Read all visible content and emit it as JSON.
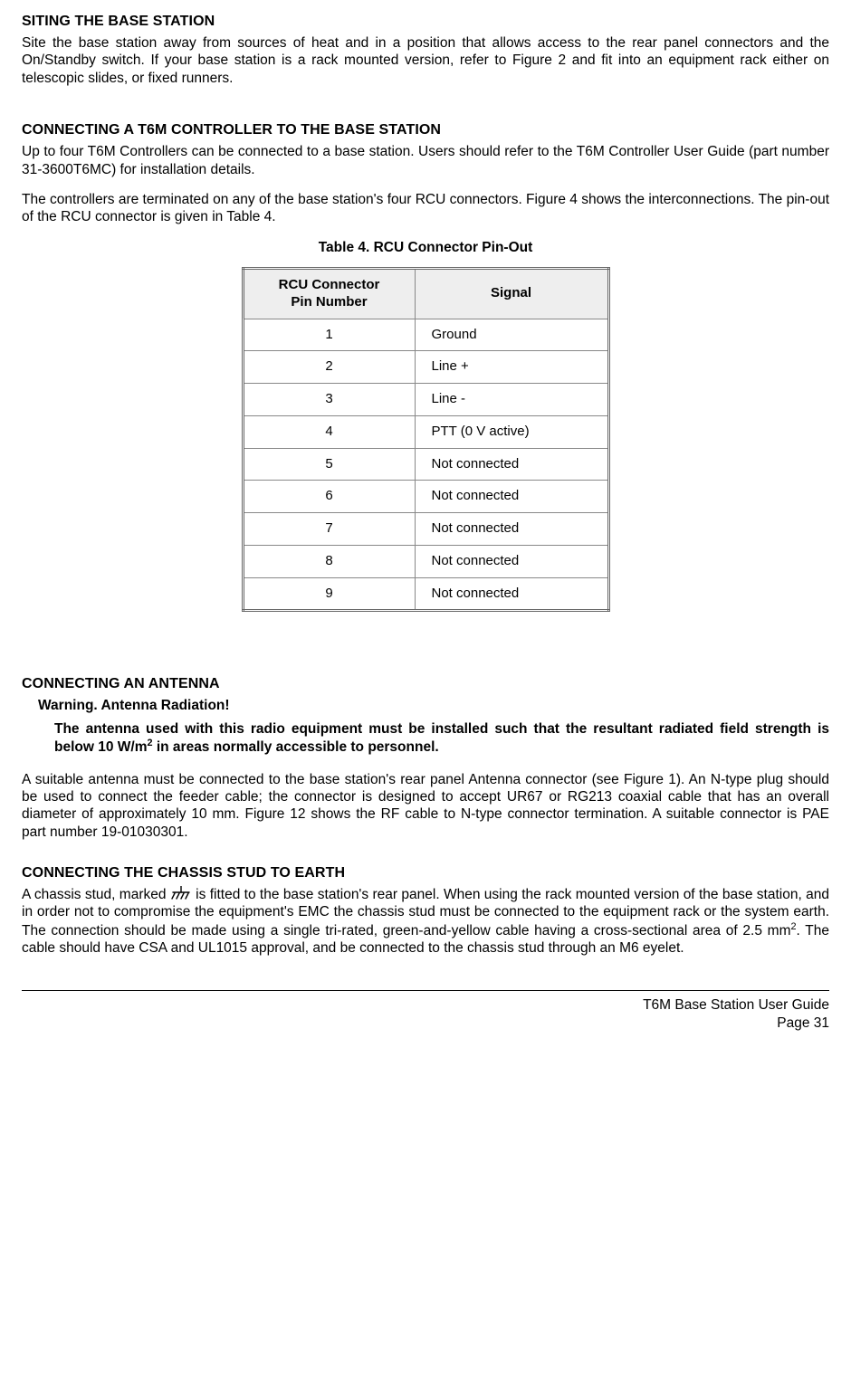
{
  "section1": {
    "heading": "SITING THE BASE STATION",
    "para": "Site the base station away from sources of heat and in a position that allows access to the rear panel connectors and the On/Standby switch. If your base station is a rack mounted version, refer to Figure 2 and fit into an equipment rack either on telescopic slides, or fixed runners."
  },
  "section2": {
    "heading": "CONNECTING A T6M CONTROLLER TO THE BASE STATION",
    "para1": "Up to four T6M Controllers can be connected to a base station. Users should refer to the T6M Controller User Guide (part number 31-3600T6MC) for installation details.",
    "para2": "The controllers are terminated on any of the base station's four RCU connectors. Figure 4 shows the interconnections. The pin-out of the RCU connector is given in Table 4.",
    "table_caption": "Table 4.  RCU Connector Pin-Out",
    "table": {
      "col1_header_line1": "RCU Connector",
      "col1_header_line2": "Pin Number",
      "col2_header": "Signal",
      "rows": [
        {
          "pin": "1",
          "signal": "Ground"
        },
        {
          "pin": "2",
          "signal": "Line +"
        },
        {
          "pin": "3",
          "signal": "Line -"
        },
        {
          "pin": "4",
          "signal": "PTT (0 V active)"
        },
        {
          "pin": "5",
          "signal": "Not connected"
        },
        {
          "pin": "6",
          "signal": "Not connected"
        },
        {
          "pin": "7",
          "signal": "Not connected"
        },
        {
          "pin": "8",
          "signal": "Not connected"
        },
        {
          "pin": "9",
          "signal": "Not connected"
        }
      ]
    }
  },
  "section3": {
    "heading": "CONNECTING AN ANTENNA",
    "warning_title": "Warning. Antenna Radiation!",
    "warning_body_before_sup": "The antenna used with this radio equipment must be installed such that the resultant radiated field strength is below 10 W/m",
    "warning_sup": "2",
    "warning_body_after_sup": " in areas normally accessible to personnel.",
    "para": "A suitable antenna must be connected to the base station's rear panel Antenna connector (see Figure 1). An N-type plug should be used to connect the feeder cable; the connector is designed to accept UR67 or RG213 coaxial cable that has an overall diameter of approximately 10 mm. Figure 12 shows the RF cable to N-type connector termination. A suitable connector is PAE part number 19-01030301."
  },
  "section4": {
    "heading": "CONNECTING THE CHASSIS STUD TO EARTH",
    "para_before_icon": "A chassis stud, marked ",
    "para_after_icon_before_sup": " is fitted to the base station's rear panel. When using the rack mounted version of the base station, and in order not to compromise the equipment's EMC the chassis stud must be connected to the equipment rack or the system earth.  The connection should be made using a single tri-rated, green-and-yellow cable having a cross-sectional area of 2.5 mm",
    "para_sup": "2",
    "para_after_sup": ". The cable should have CSA and UL1015 approval, and be connected to the chassis stud through an M6 eyelet."
  },
  "footer": {
    "line1": "T6M Base Station User Guide",
    "line2": "Page 31"
  }
}
